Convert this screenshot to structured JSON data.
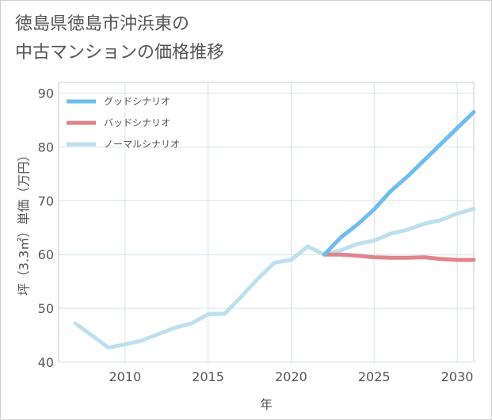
{
  "title": "徳島県徳島市沖浜東の\n中古マンションの価格推移",
  "chart_data": {
    "type": "line",
    "title": "徳島県徳島市沖浜東の\n中古マンションの価格推移",
    "xlabel": "年",
    "ylabel": "坪（3.3㎡）単価（万円）",
    "xlim": [
      2006,
      2031
    ],
    "ylim": [
      40,
      92
    ],
    "xticks": [
      2010,
      2015,
      2020,
      2025,
      2030
    ],
    "yticks": [
      40,
      50,
      60,
      70,
      80,
      90
    ],
    "grid": true,
    "legend_position": "top-left",
    "series": [
      {
        "name": "グッドシナリオ",
        "color": "#6fbcee",
        "x": [
          2022,
          2023,
          2024,
          2025,
          2026,
          2027,
          2028,
          2029,
          2030,
          2031
        ],
        "y": [
          60.0,
          63.2,
          65.6,
          68.4,
          71.8,
          74.5,
          77.5,
          80.5,
          83.5,
          86.5
        ]
      },
      {
        "name": "バッドシナリオ",
        "color": "#e0848c",
        "x": [
          2022,
          2023,
          2024,
          2025,
          2026,
          2027,
          2028,
          2029,
          2030,
          2031
        ],
        "y": [
          60.0,
          60.0,
          59.8,
          59.5,
          59.4,
          59.4,
          59.5,
          59.2,
          59.0,
          59.0
        ]
      },
      {
        "name": "ノーマルシナリオ",
        "color": "#bde0ee",
        "x": [
          2007,
          2008,
          2009,
          2010,
          2011,
          2012,
          2013,
          2014,
          2015,
          2016,
          2017,
          2018,
          2019,
          2020,
          2021,
          2022,
          2023,
          2024,
          2025,
          2026,
          2027,
          2028,
          2029,
          2030,
          2031
        ],
        "y": [
          47.2,
          45.0,
          42.7,
          43.3,
          44.0,
          45.2,
          46.4,
          47.2,
          48.9,
          49.0,
          52.2,
          55.5,
          58.5,
          59.0,
          61.5,
          60.0,
          60.8,
          62.0,
          62.6,
          63.9,
          64.6,
          65.7,
          66.4,
          67.6,
          68.5
        ]
      }
    ]
  }
}
